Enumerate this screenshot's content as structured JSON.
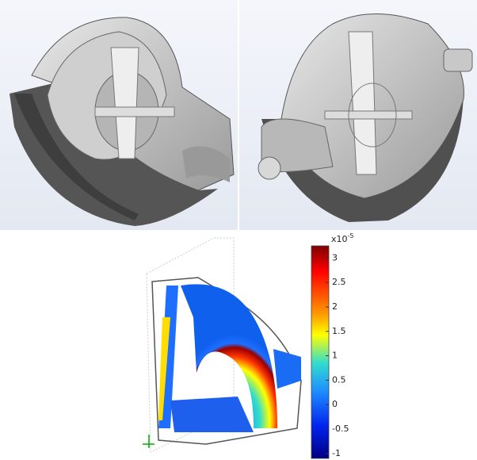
{
  "figure": {
    "colorbar": {
      "multiplier": {
        "base": "x10",
        "exponent": "-5"
      },
      "range": [
        -1.1,
        3.25
      ],
      "ticks": [
        3,
        2.5,
        2,
        1.5,
        1,
        0.5,
        0,
        -0.5,
        -1
      ]
    }
  }
}
